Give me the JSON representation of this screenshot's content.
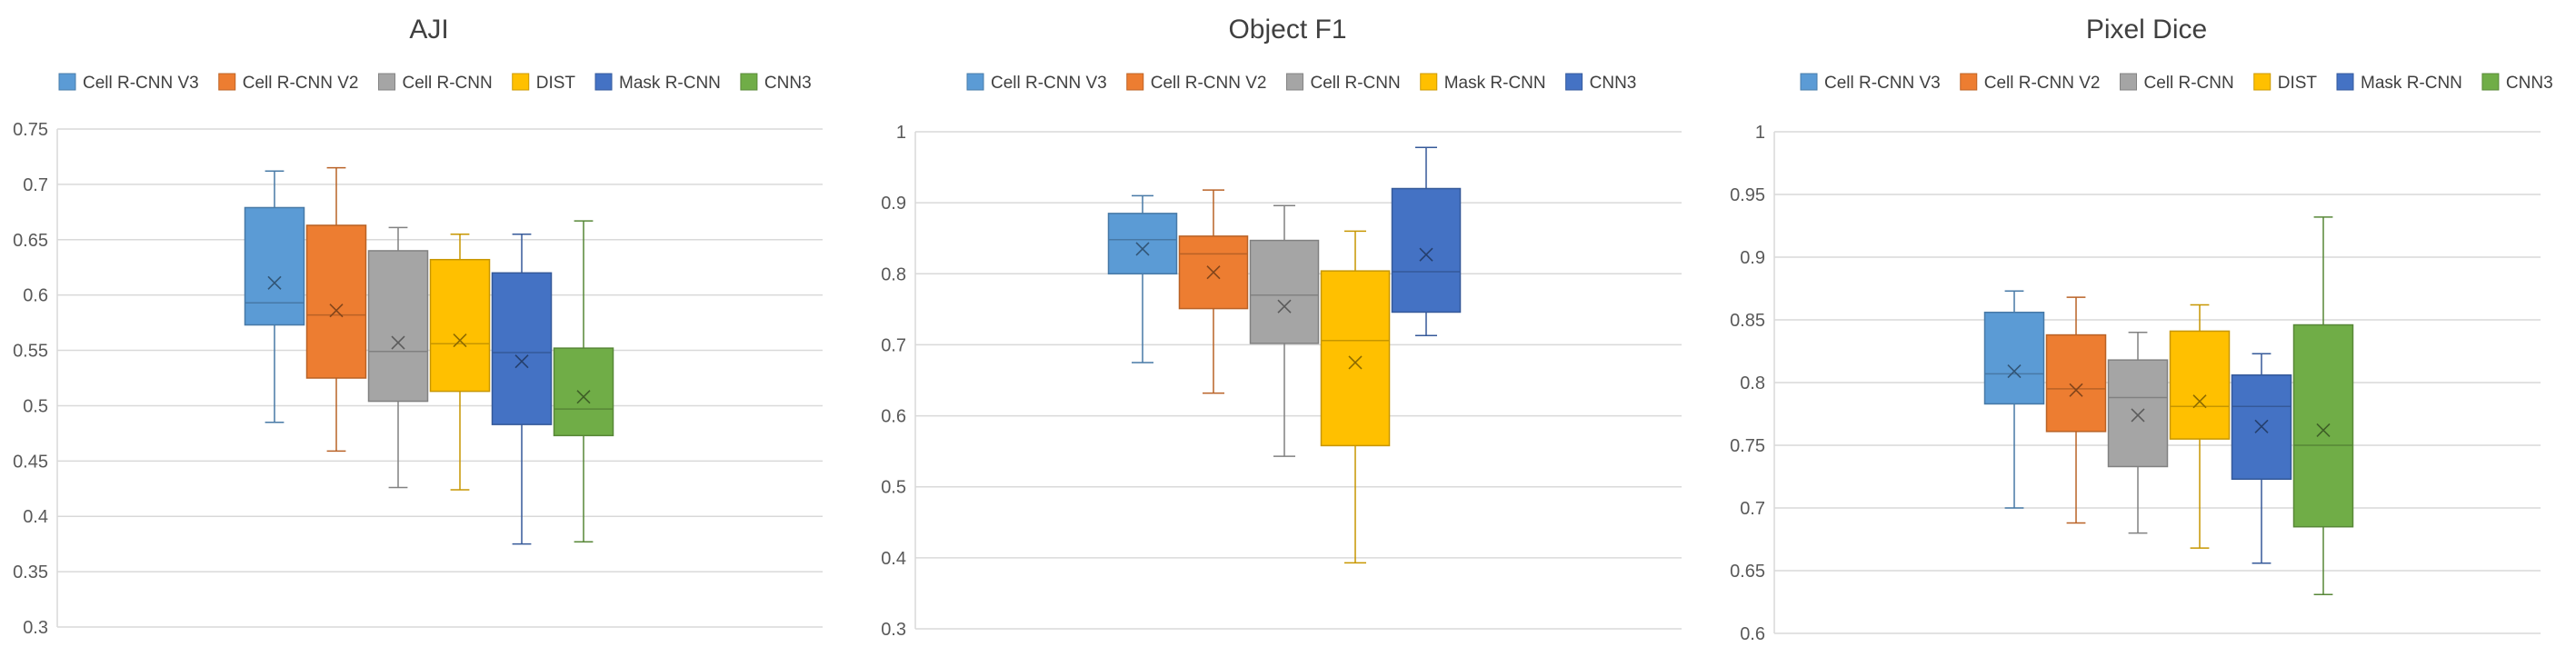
{
  "chart_data": [
    {
      "type": "box",
      "title": "AJI",
      "xlabel": "",
      "ylabel": "",
      "ylim": [
        0.3,
        0.75
      ],
      "yticks": [
        "0.3",
        "0.35",
        "0.4",
        "0.45",
        "0.5",
        "0.55",
        "0.6",
        "0.65",
        "0.7",
        "0.75"
      ],
      "grid": true,
      "legend_position": "top",
      "series": [
        {
          "name": "Cell R-CNN V3",
          "color": "#5B9BD5",
          "min": 0.485,
          "q1": 0.573,
          "median": 0.593,
          "q3": 0.679,
          "max": 0.712,
          "mean": 0.611
        },
        {
          "name": "Cell R-CNN V2",
          "color": "#ED7D31",
          "min": 0.459,
          "q1": 0.525,
          "median": 0.582,
          "q3": 0.663,
          "max": 0.715,
          "mean": 0.586
        },
        {
          "name": "Cell R-CNN",
          "color": "#A5A5A5",
          "min": 0.426,
          "q1": 0.504,
          "median": 0.549,
          "q3": 0.64,
          "max": 0.661,
          "mean": 0.557
        },
        {
          "name": "DIST",
          "color": "#FFC000",
          "min": 0.424,
          "q1": 0.513,
          "median": 0.556,
          "q3": 0.632,
          "max": 0.655,
          "mean": 0.559
        },
        {
          "name": "Mask R-CNN",
          "color": "#4472C4",
          "min": 0.375,
          "q1": 0.483,
          "median": 0.548,
          "q3": 0.62,
          "max": 0.655,
          "mean": 0.54
        },
        {
          "name": "CNN3",
          "color": "#70AD47",
          "min": 0.377,
          "q1": 0.473,
          "median": 0.497,
          "q3": 0.552,
          "max": 0.667,
          "mean": 0.508
        }
      ]
    },
    {
      "type": "box",
      "title": "Object F1",
      "xlabel": "",
      "ylabel": "",
      "ylim": [
        0.3,
        1.0
      ],
      "yticks": [
        "0.3",
        "0.4",
        "0.5",
        "0.6",
        "0.7",
        "0.8",
        "0.9",
        "1"
      ],
      "grid": true,
      "legend_position": "top",
      "series": [
        {
          "name": "Cell R-CNN V3",
          "color": "#5B9BD5",
          "min": 0.675,
          "q1": 0.8,
          "median": 0.848,
          "q3": 0.885,
          "max": 0.91,
          "mean": 0.835
        },
        {
          "name": "Cell R-CNN V2",
          "color": "#ED7D31",
          "min": 0.632,
          "q1": 0.751,
          "median": 0.828,
          "q3": 0.853,
          "max": 0.918,
          "mean": 0.802
        },
        {
          "name": "Cell R-CNN",
          "color": "#A5A5A5",
          "min": 0.543,
          "q1": 0.702,
          "median": 0.77,
          "q3": 0.847,
          "max": 0.896,
          "mean": 0.754
        },
        {
          "name": "Mask R-CNN",
          "color": "#FFC000",
          "min": 0.393,
          "q1": 0.558,
          "median": 0.706,
          "q3": 0.804,
          "max": 0.86,
          "mean": 0.675
        },
        {
          "name": "CNN3",
          "color": "#4472C4",
          "min": 0.713,
          "q1": 0.746,
          "median": 0.803,
          "q3": 0.92,
          "max": 0.978,
          "mean": 0.827
        }
      ]
    },
    {
      "type": "box",
      "title": "Pixel Dice",
      "xlabel": "",
      "ylabel": "",
      "ylim": [
        0.6,
        1.0
      ],
      "yticks": [
        "0.6",
        "0.65",
        "0.7",
        "0.75",
        "0.8",
        "0.85",
        "0.9",
        "0.95",
        "1"
      ],
      "grid": true,
      "legend_position": "top",
      "series": [
        {
          "name": "Cell R-CNN V3",
          "color": "#5B9BD5",
          "min": 0.7,
          "q1": 0.783,
          "median": 0.807,
          "q3": 0.856,
          "max": 0.873,
          "mean": 0.809
        },
        {
          "name": "Cell R-CNN V2",
          "color": "#ED7D31",
          "min": 0.688,
          "q1": 0.761,
          "median": 0.795,
          "q3": 0.838,
          "max": 0.868,
          "mean": 0.794
        },
        {
          "name": "Cell R-CNN",
          "color": "#A5A5A5",
          "min": 0.68,
          "q1": 0.733,
          "median": 0.788,
          "q3": 0.818,
          "max": 0.84,
          "mean": 0.774
        },
        {
          "name": "DIST",
          "color": "#FFC000",
          "min": 0.668,
          "q1": 0.755,
          "median": 0.781,
          "q3": 0.841,
          "max": 0.862,
          "mean": 0.785
        },
        {
          "name": "Mask R-CNN",
          "color": "#4472C4",
          "min": 0.656,
          "q1": 0.723,
          "median": 0.781,
          "q3": 0.806,
          "max": 0.823,
          "mean": 0.765
        },
        {
          "name": "CNN3",
          "color": "#70AD47",
          "min": 0.631,
          "q1": 0.685,
          "median": 0.75,
          "q3": 0.846,
          "max": 0.932,
          "mean": 0.762
        }
      ]
    }
  ]
}
